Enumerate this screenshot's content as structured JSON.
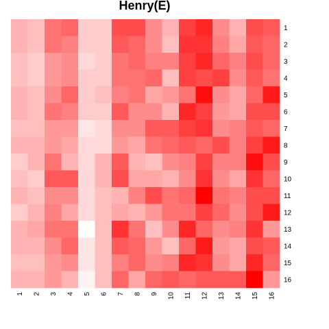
{
  "chart_data": {
    "type": "heatmap",
    "title": "Henry(E)",
    "columns": [
      "1",
      "2",
      "3",
      "4",
      "5",
      "6",
      "7",
      "8",
      "9",
      "10",
      "11",
      "12",
      "13",
      "14",
      "15",
      "16"
    ],
    "rows": [
      "1",
      "2",
      "3",
      "4",
      "5",
      "6",
      "7",
      "8",
      "9",
      "10",
      "11",
      "12",
      "13",
      "14",
      "15",
      "16"
    ],
    "color_low": "#ffffff",
    "color_high": "#ff0000",
    "value_range": [
      0,
      1
    ],
    "values": [
      [
        0.3,
        0.25,
        0.55,
        0.6,
        0.2,
        0.2,
        0.7,
        0.7,
        0.45,
        0.3,
        0.75,
        0.85,
        0.45,
        0.3,
        0.7,
        0.65
      ],
      [
        0.3,
        0.25,
        0.55,
        0.5,
        0.2,
        0.2,
        0.65,
        0.6,
        0.45,
        0.25,
        0.8,
        0.8,
        0.5,
        0.35,
        0.65,
        0.6
      ],
      [
        0.25,
        0.2,
        0.4,
        0.45,
        0.15,
        0.2,
        0.55,
        0.6,
        0.5,
        0.5,
        0.75,
        0.85,
        0.6,
        0.5,
        0.7,
        0.6
      ],
      [
        0.25,
        0.2,
        0.4,
        0.45,
        0.2,
        0.2,
        0.55,
        0.55,
        0.6,
        0.25,
        0.75,
        0.7,
        0.75,
        0.45,
        0.65,
        0.55
      ],
      [
        0.3,
        0.25,
        0.45,
        0.6,
        0.2,
        0.25,
        0.5,
        0.55,
        0.35,
        0.4,
        0.55,
        0.95,
        0.45,
        0.35,
        0.6,
        0.9
      ],
      [
        0.3,
        0.25,
        0.55,
        0.5,
        0.2,
        0.2,
        0.65,
        0.45,
        0.45,
        0.3,
        0.85,
        0.75,
        0.4,
        0.35,
        0.7,
        0.7
      ],
      [
        0.25,
        0.25,
        0.4,
        0.4,
        0.1,
        0.15,
        0.45,
        0.45,
        0.65,
        0.65,
        0.75,
        0.8,
        0.45,
        0.5,
        0.65,
        0.6
      ],
      [
        0.3,
        0.3,
        0.4,
        0.35,
        0.15,
        0.15,
        0.4,
        0.35,
        0.55,
        0.6,
        0.65,
        0.6,
        0.7,
        0.5,
        0.75,
        0.9
      ],
      [
        0.2,
        0.3,
        0.55,
        0.3,
        0.15,
        0.3,
        0.65,
        0.3,
        0.25,
        0.45,
        0.5,
        0.75,
        0.5,
        0.5,
        0.95,
        0.7
      ],
      [
        0.25,
        0.2,
        0.65,
        0.65,
        0.15,
        0.3,
        0.7,
        0.35,
        0.35,
        0.3,
        0.45,
        0.8,
        0.45,
        0.35,
        0.8,
        0.6
      ],
      [
        0.3,
        0.25,
        0.45,
        0.45,
        0.15,
        0.25,
        0.3,
        0.5,
        0.7,
        0.55,
        0.6,
        1.0,
        0.55,
        0.5,
        0.7,
        0.7
      ],
      [
        0.2,
        0.3,
        0.5,
        0.35,
        0.15,
        0.25,
        0.35,
        0.3,
        0.4,
        0.55,
        0.55,
        0.75,
        0.6,
        0.45,
        0.7,
        0.9
      ],
      [
        0.3,
        0.35,
        0.55,
        0.55,
        0.0,
        0.25,
        0.8,
        0.55,
        0.25,
        0.45,
        0.85,
        0.6,
        0.45,
        0.5,
        0.8,
        0.4
      ],
      [
        0.3,
        0.3,
        0.45,
        0.6,
        0.1,
        0.25,
        0.65,
        0.6,
        0.4,
        0.25,
        0.6,
        0.9,
        0.4,
        0.35,
        0.7,
        0.65
      ],
      [
        0.25,
        0.25,
        0.4,
        0.45,
        0.1,
        0.25,
        0.5,
        0.6,
        0.45,
        0.5,
        0.85,
        0.8,
        0.45,
        0.35,
        0.85,
        0.6
      ],
      [
        0.3,
        0.3,
        0.4,
        0.3,
        0.05,
        0.25,
        0.6,
        0.35,
        0.6,
        0.65,
        0.6,
        0.65,
        0.65,
        0.65,
        1.0,
        0.4
      ]
    ]
  }
}
